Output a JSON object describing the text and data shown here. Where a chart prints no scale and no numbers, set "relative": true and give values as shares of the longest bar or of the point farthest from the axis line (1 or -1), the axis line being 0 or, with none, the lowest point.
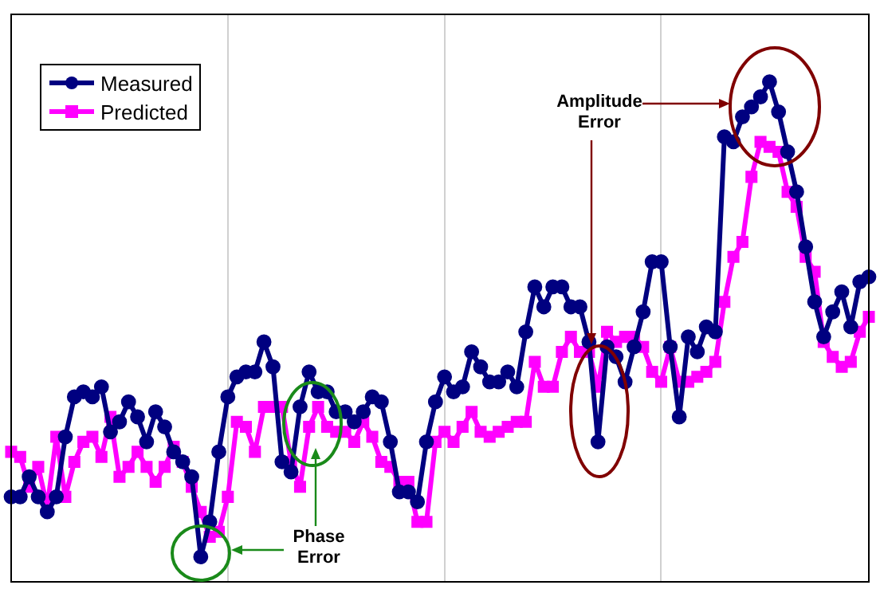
{
  "chart_data": {
    "type": "line",
    "relative": true,
    "categories": [
      null,
      null,
      null,
      null,
      null,
      null,
      null,
      null,
      null,
      null,
      null,
      null,
      null,
      null,
      null,
      null,
      null,
      null,
      null,
      null,
      null,
      null,
      null,
      null,
      null,
      null,
      null,
      null,
      null,
      null,
      null,
      null,
      null,
      null,
      null,
      null,
      null,
      null,
      null,
      null,
      null,
      null,
      null,
      null,
      null,
      null,
      null,
      null,
      null,
      null,
      null,
      null,
      null,
      null,
      null,
      null,
      null,
      null,
      null,
      null,
      null,
      null,
      null,
      null,
      null,
      null,
      null,
      null,
      null,
      null,
      null,
      null,
      null,
      null,
      null,
      null,
      null,
      null,
      null,
      null,
      null,
      null,
      null,
      null,
      null,
      null,
      null,
      null,
      null,
      null,
      null,
      null,
      null,
      null,
      null,
      null
    ],
    "series": [
      {
        "name": "Measured",
        "color": "#000080",
        "marker": "circle",
        "values": [
          0.17,
          0.17,
          0.21,
          0.17,
          0.14,
          0.17,
          0.29,
          0.37,
          0.38,
          0.37,
          0.39,
          0.3,
          0.32,
          0.36,
          0.33,
          0.28,
          0.34,
          0.31,
          0.26,
          0.24,
          0.21,
          0.05,
          0.12,
          0.26,
          0.37,
          0.41,
          0.42,
          0.42,
          0.48,
          0.43,
          0.24,
          0.22,
          0.35,
          0.42,
          0.38,
          0.38,
          0.34,
          0.34,
          0.32,
          0.34,
          0.37,
          0.36,
          0.28,
          0.18,
          0.18,
          0.16,
          0.28,
          0.36,
          0.41,
          0.38,
          0.39,
          0.46,
          0.43,
          0.4,
          0.4,
          0.42,
          0.39,
          0.5,
          0.59,
          0.55,
          0.59,
          0.59,
          0.55,
          0.55,
          0.48,
          0.28,
          0.47,
          0.45,
          0.4,
          0.47,
          0.54,
          0.64,
          0.64,
          0.47,
          0.33,
          0.49,
          0.46,
          0.51,
          0.5,
          0.89,
          0.88,
          0.93,
          0.95,
          0.97,
          1,
          0.94,
          0.86,
          0.78,
          0.67,
          0.56,
          0.49,
          0.54,
          0.58,
          0.51,
          0.6,
          0.61
        ]
      },
      {
        "name": "Predicted",
        "color": "#ff00ff",
        "marker": "square",
        "values": [
          0.26,
          0.25,
          0.19,
          0.23,
          0.15,
          0.29,
          0.17,
          0.24,
          0.28,
          0.29,
          0.25,
          0.33,
          0.21,
          0.23,
          0.26,
          0.23,
          0.2,
          0.23,
          0.27,
          0.24,
          0.19,
          0.14,
          0.09,
          0.1,
          0.17,
          0.32,
          0.31,
          0.26,
          0.35,
          0.35,
          0.35,
          0.24,
          0.19,
          0.31,
          0.35,
          0.31,
          0.3,
          0.3,
          0.28,
          0.32,
          0.29,
          0.24,
          0.23,
          0.2,
          0.2,
          0.12,
          0.12,
          0.28,
          0.3,
          0.28,
          0.31,
          0.34,
          0.3,
          0.29,
          0.3,
          0.31,
          0.32,
          0.32,
          0.44,
          0.39,
          0.39,
          0.46,
          0.49,
          0.46,
          0.46,
          0.39,
          0.5,
          0.48,
          0.49,
          0.49,
          0.47,
          0.42,
          0.4,
          0.47,
          0.4,
          0.4,
          0.41,
          0.42,
          0.44,
          0.56,
          0.65,
          0.68,
          0.81,
          0.88,
          0.87,
          0.86,
          0.78,
          0.75,
          0.65,
          0.62,
          0.48,
          0.45,
          0.43,
          0.44,
          0.5,
          0.53
        ]
      }
    ],
    "annotations": [
      "Phase Error",
      "Amplitude Error"
    ],
    "grid": "x",
    "legend": "top left",
    "tick_labels": false,
    "line_style": "solid"
  }
}
